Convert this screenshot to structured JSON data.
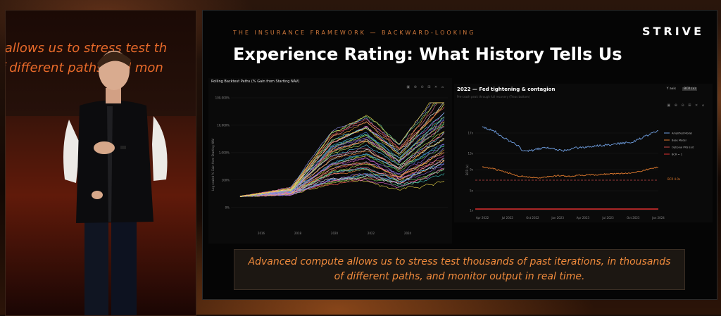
{
  "stage": {
    "screen_lines": [
      "e allows us to stress test th",
      "of different paths and mon"
    ]
  },
  "slide": {
    "kicker": "THE INSURANCE FRAMEWORK — BACKWARD-LOOKING",
    "logo": "STRIVE",
    "title": "Experience Rating: What History Tells Us",
    "caption": "Advanced compute allows us to stress test thousands of past iterations, in thousands of different paths, and monitor output in real time."
  },
  "left_chart": {
    "title": "Rolling Backtest Paths (% Gain from Starting NAV)",
    "toolbar": "▣ ⊕ ⊖ ⊞ ✕ ⌂",
    "ylabel": "Log scaled % Gain from Starting NAV",
    "y_ticks": [
      "100,000%",
      "10,000%",
      "1,000%",
      "100%",
      "0%"
    ],
    "x_ticks": [
      "2016",
      "2018",
      "2020",
      "2022",
      "2024"
    ]
  },
  "right_chart": {
    "title": "2022 — Fed tightening & contagion",
    "subtitle": "Pre-crash peak through full recovery (Treas bottom)",
    "scale_options": [
      "Y axis",
      "BCR (x)"
    ],
    "toolbar": "▣ ⊕ ⊖ ⊞ ✕ ⌂",
    "ylabel": "BCR (x)",
    "y_ticks": [
      "17x",
      "13x",
      "9x",
      "5x",
      "1x"
    ],
    "x_ticks": [
      "Apr 2022",
      "Jul 2022",
      "Oct 2022",
      "Jan 2023",
      "Apr 2023",
      "Jul 2023",
      "Oct 2023",
      "Jan 2024"
    ],
    "legend": [
      {
        "label": "Amplified Model",
        "color": "#6f9ee0"
      },
      {
        "label": "Base Model",
        "color": "#e07a2e"
      },
      {
        "label": "Optional PRS Exit",
        "color": "#c84a4a"
      },
      {
        "label": "BCR = 1",
        "color": "#e03030"
      }
    ],
    "threshold_label": "BCR 4.0x"
  }
}
